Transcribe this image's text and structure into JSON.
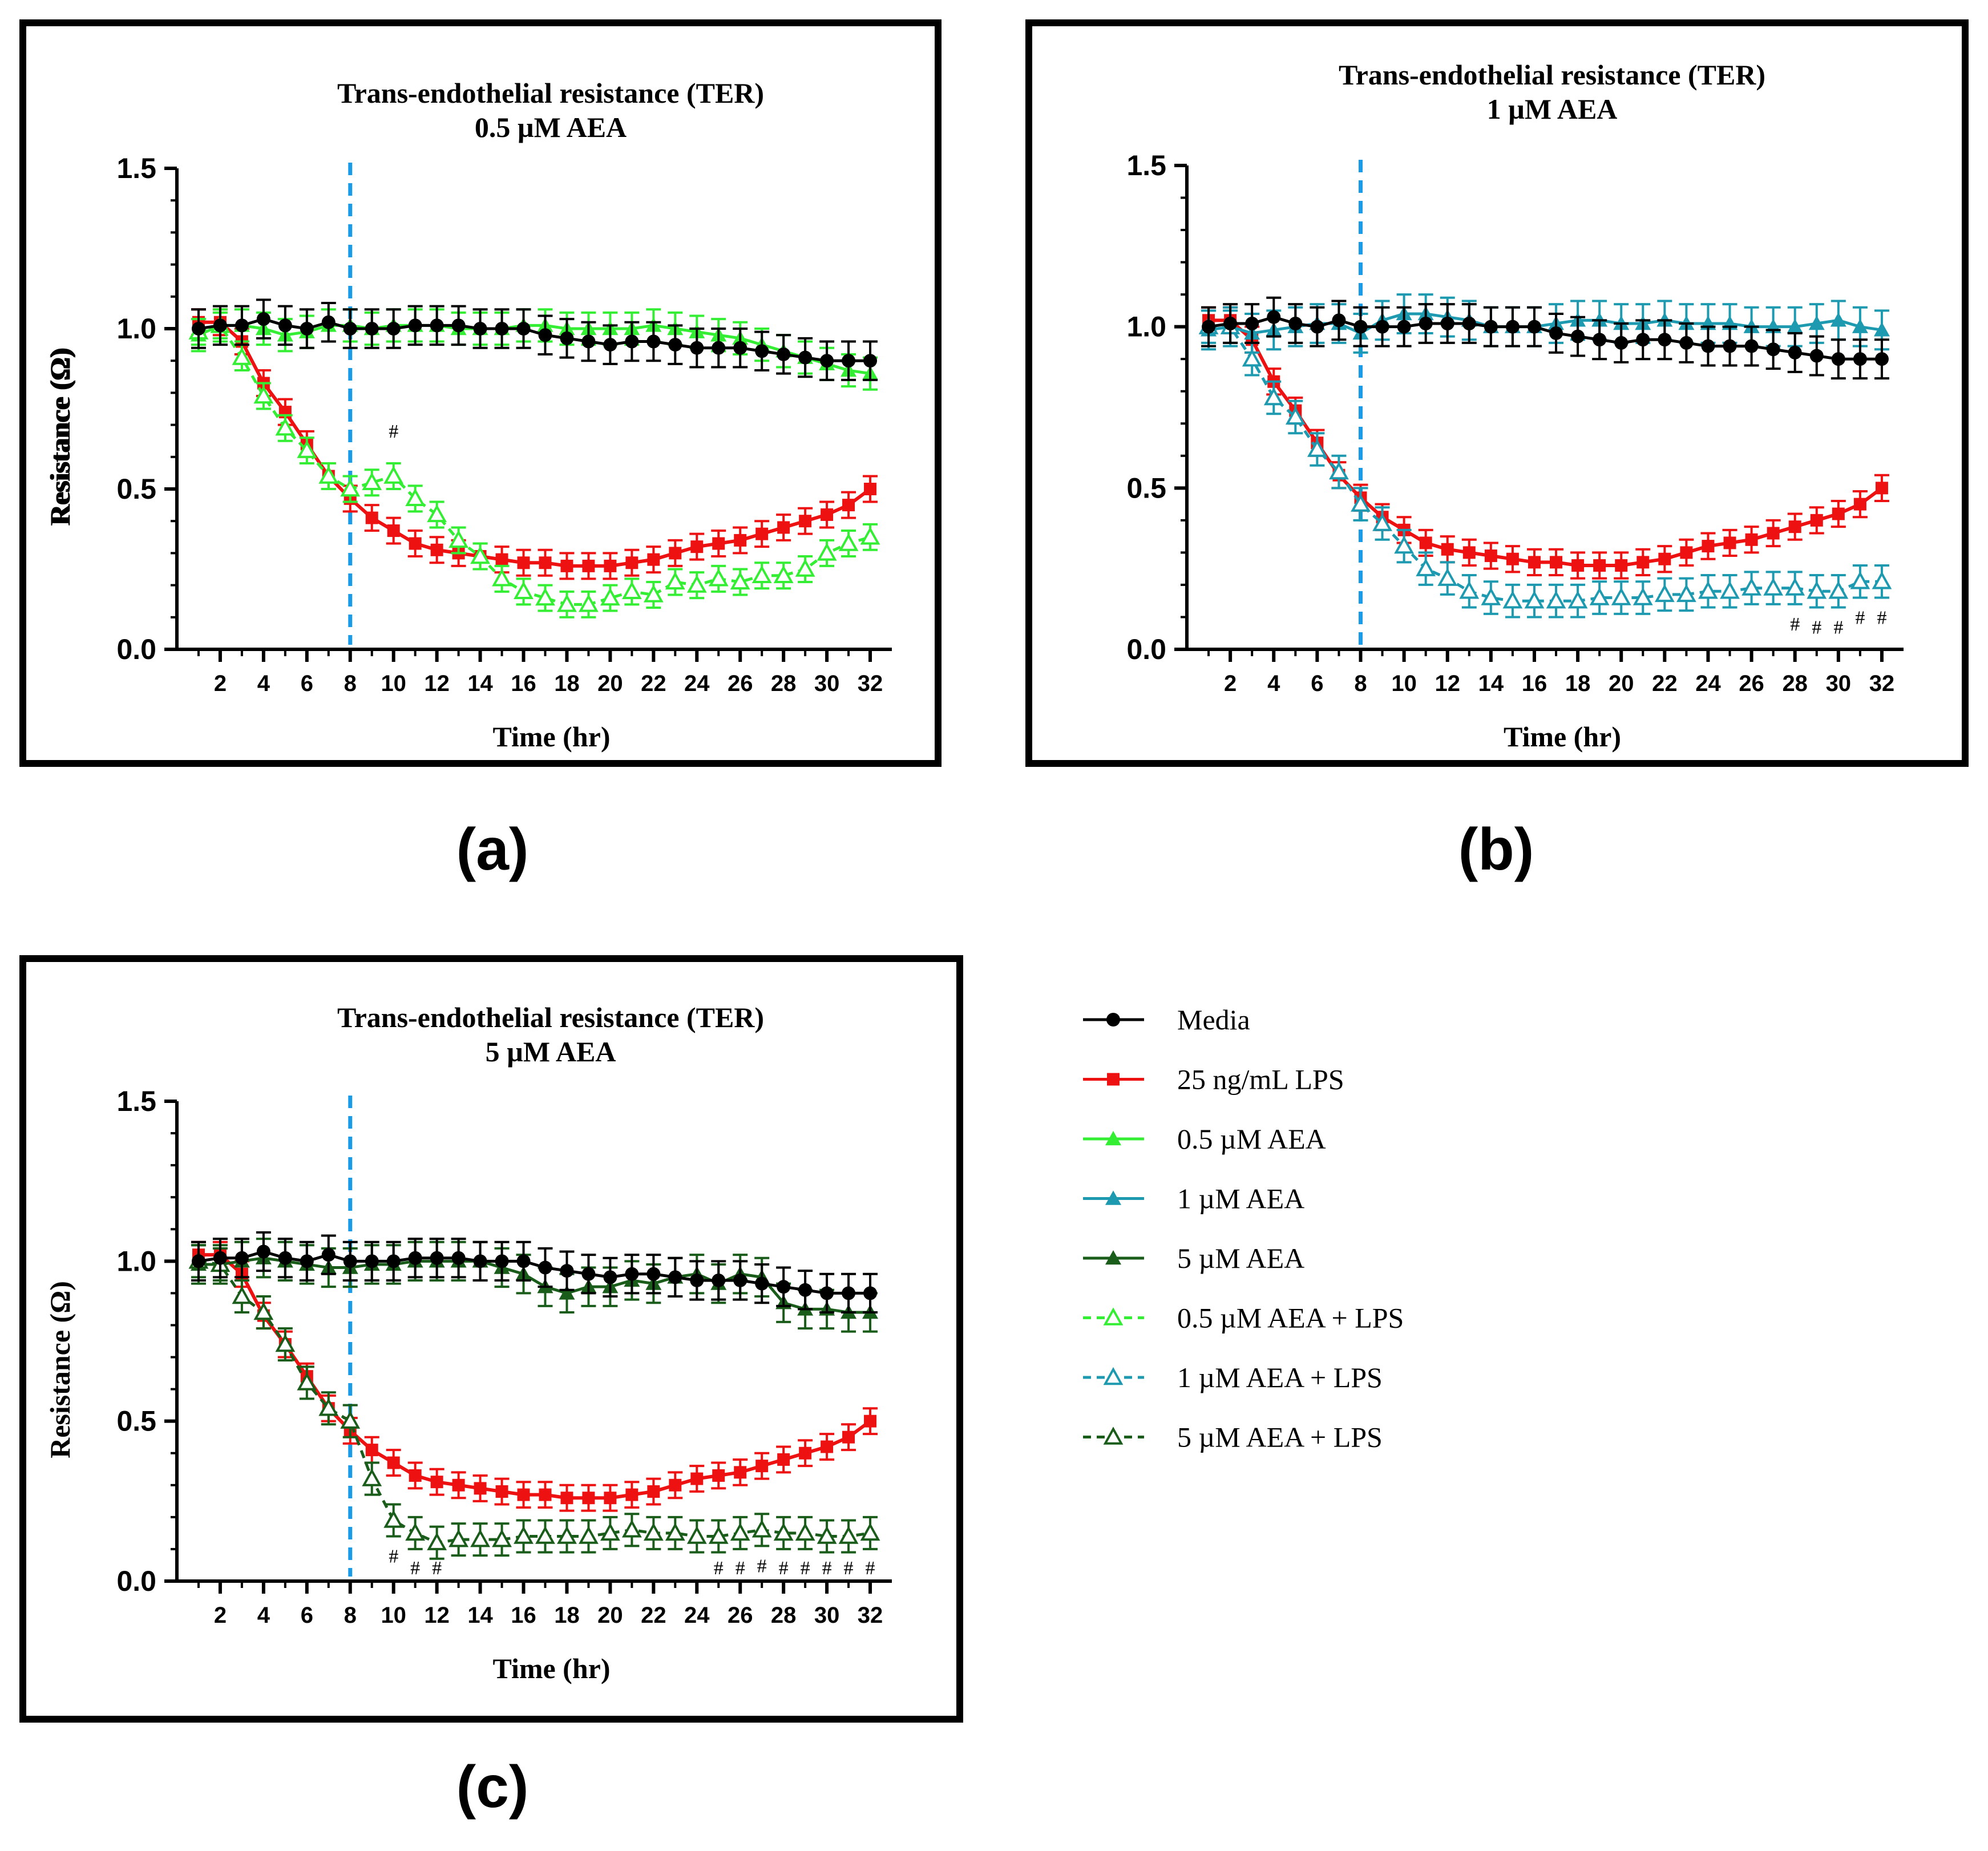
{
  "chart_data": [
    {
      "type": "line",
      "panel_label": "(a)",
      "title": [
        "Trans-endothelial resistance (TER)",
        "0.5 µM AEA"
      ],
      "xlabel": "Time (hr)",
      "ylabel": "Resistance (Ω)",
      "xlim": [
        0,
        33
      ],
      "ylim": [
        0,
        1.5
      ],
      "xticks": [
        2,
        4,
        6,
        8,
        10,
        12,
        14,
        16,
        18,
        20,
        22,
        24,
        26,
        28,
        30,
        32
      ],
      "yticks": [
        0.0,
        0.5,
        1.0,
        1.5
      ],
      "ytick_labels": [
        "0.0",
        "0.5",
        "1.0",
        "1.5"
      ],
      "treatment_time": 8,
      "x": [
        1,
        2,
        3,
        4,
        5,
        6,
        7,
        8,
        9,
        10,
        11,
        12,
        13,
        14,
        15,
        16,
        17,
        18,
        19,
        20,
        21,
        22,
        23,
        24,
        25,
        26,
        27,
        28,
        29,
        30,
        31,
        32
      ],
      "series": [
        {
          "key": "lps",
          "values": [
            1.02,
            1.02,
            0.96,
            0.83,
            0.74,
            0.64,
            0.54,
            0.47,
            0.41,
            0.37,
            0.33,
            0.31,
            0.3,
            0.29,
            0.28,
            0.27,
            0.27,
            0.26,
            0.26,
            0.26,
            0.27,
            0.28,
            0.3,
            0.32,
            0.33,
            0.34,
            0.36,
            0.38,
            0.4,
            0.42,
            0.45,
            0.5
          ],
          "err": 0.04
        },
        {
          "key": "aea",
          "values": [
            0.98,
            1.01,
            1.01,
            1.0,
            0.98,
            0.99,
            1.01,
            1.01,
            1.0,
            1.01,
            1.01,
            1.01,
            1.0,
            1.0,
            1.0,
            1.01,
            1.01,
            1.0,
            1.0,
            1.0,
            1.0,
            1.01,
            1.0,
            0.99,
            0.98,
            0.97,
            0.95,
            0.93,
            0.91,
            0.89,
            0.87,
            0.86
          ],
          "err": 0.05
        },
        {
          "key": "aea_lps",
          "values": [
            0.99,
            1.01,
            0.91,
            0.79,
            0.69,
            0.62,
            0.54,
            0.5,
            0.52,
            0.54,
            0.47,
            0.42,
            0.34,
            0.29,
            0.22,
            0.18,
            0.16,
            0.14,
            0.14,
            0.16,
            0.18,
            0.17,
            0.21,
            0.2,
            0.22,
            0.21,
            0.23,
            0.23,
            0.25,
            0.3,
            0.33,
            0.35
          ],
          "err": 0.04
        },
        {
          "key": "media",
          "values": [
            1.0,
            1.01,
            1.01,
            1.03,
            1.01,
            1.0,
            1.02,
            1.0,
            1.0,
            1.0,
            1.01,
            1.01,
            1.01,
            1.0,
            1.0,
            1.0,
            0.98,
            0.97,
            0.96,
            0.95,
            0.96,
            0.96,
            0.95,
            0.94,
            0.94,
            0.94,
            0.93,
            0.92,
            0.91,
            0.9,
            0.9,
            0.9
          ],
          "err": 0.06
        }
      ],
      "significance_marker": "#",
      "significance_x": [
        10
      ]
    },
    {
      "type": "line",
      "panel_label": "(b)",
      "title": [
        "Trans-endothelial resistance (TER)",
        "1 µM AEA"
      ],
      "xlabel": "Time (hr)",
      "ylabel": "Resistance (Ω)",
      "xlim": [
        0,
        33
      ],
      "ylim": [
        0,
        1.5
      ],
      "xticks": [
        2,
        4,
        6,
        8,
        10,
        12,
        14,
        16,
        18,
        20,
        22,
        24,
        26,
        28,
        30,
        32
      ],
      "yticks": [
        0.0,
        0.5,
        1.0,
        1.5
      ],
      "ytick_labels": [
        "0.0",
        "0.5",
        "1.0",
        "1.5"
      ],
      "treatment_time": 8,
      "x": [
        1,
        2,
        3,
        4,
        5,
        6,
        7,
        8,
        9,
        10,
        11,
        12,
        13,
        14,
        15,
        16,
        17,
        18,
        19,
        20,
        21,
        22,
        23,
        24,
        25,
        26,
        27,
        28,
        29,
        30,
        31,
        32
      ],
      "series": [
        {
          "key": "lps",
          "values": [
            1.02,
            1.02,
            0.96,
            0.83,
            0.74,
            0.64,
            0.54,
            0.47,
            0.41,
            0.37,
            0.33,
            0.31,
            0.3,
            0.29,
            0.28,
            0.27,
            0.27,
            0.26,
            0.26,
            0.26,
            0.27,
            0.28,
            0.3,
            0.32,
            0.33,
            0.34,
            0.36,
            0.38,
            0.4,
            0.42,
            0.45,
            0.5
          ],
          "err": 0.04
        },
        {
          "key": "aea",
          "values": [
            0.99,
            1.0,
            0.98,
            0.99,
            1.0,
            1.01,
            1.01,
            0.98,
            1.02,
            1.04,
            1.04,
            1.03,
            1.02,
            1.0,
            1.0,
            1.0,
            1.01,
            1.02,
            1.02,
            1.01,
            1.01,
            1.02,
            1.01,
            1.01,
            1.01,
            1.0,
            1.0,
            1.0,
            1.01,
            1.02,
            1.0,
            0.99
          ],
          "err": 0.06
        },
        {
          "key": "aea_lps",
          "values": [
            1.0,
            1.0,
            0.9,
            0.78,
            0.72,
            0.62,
            0.55,
            0.45,
            0.39,
            0.32,
            0.25,
            0.22,
            0.18,
            0.16,
            0.15,
            0.15,
            0.15,
            0.15,
            0.16,
            0.16,
            0.16,
            0.17,
            0.17,
            0.18,
            0.18,
            0.19,
            0.19,
            0.19,
            0.18,
            0.18,
            0.21,
            0.21
          ],
          "err": 0.05
        },
        {
          "key": "media",
          "values": [
            1.0,
            1.01,
            1.01,
            1.03,
            1.01,
            1.0,
            1.02,
            1.0,
            1.0,
            1.0,
            1.01,
            1.01,
            1.01,
            1.0,
            1.0,
            1.0,
            0.98,
            0.97,
            0.96,
            0.95,
            0.96,
            0.96,
            0.95,
            0.94,
            0.94,
            0.94,
            0.93,
            0.92,
            0.91,
            0.9,
            0.9,
            0.9
          ],
          "err": 0.06
        }
      ],
      "significance_marker": "#",
      "significance_x": [
        28,
        29,
        30,
        31,
        32
      ]
    },
    {
      "type": "line",
      "panel_label": "(c)",
      "title": [
        "Trans-endothelial resistance (TER)",
        "5 µM AEA"
      ],
      "xlabel": "Time (hr)",
      "ylabel": "Resistance (Ω)",
      "xlim": [
        0,
        33
      ],
      "ylim": [
        0,
        1.5
      ],
      "xticks": [
        2,
        4,
        6,
        8,
        10,
        12,
        14,
        16,
        18,
        20,
        22,
        24,
        26,
        28,
        30,
        32
      ],
      "yticks": [
        0.0,
        0.5,
        1.0,
        1.5
      ],
      "ytick_labels": [
        "0.0",
        "0.5",
        "1.0",
        "1.5"
      ],
      "treatment_time": 8,
      "x": [
        1,
        2,
        3,
        4,
        5,
        6,
        7,
        8,
        9,
        10,
        11,
        12,
        13,
        14,
        15,
        16,
        17,
        18,
        19,
        20,
        21,
        22,
        23,
        24,
        25,
        26,
        27,
        28,
        29,
        30,
        31,
        32
      ],
      "series": [
        {
          "key": "lps",
          "values": [
            1.02,
            1.02,
            0.96,
            0.83,
            0.74,
            0.64,
            0.54,
            0.47,
            0.41,
            0.37,
            0.33,
            0.31,
            0.3,
            0.29,
            0.28,
            0.27,
            0.27,
            0.26,
            0.26,
            0.26,
            0.27,
            0.28,
            0.3,
            0.32,
            0.33,
            0.34,
            0.36,
            0.38,
            0.4,
            0.42,
            0.45,
            0.5
          ],
          "err": 0.04
        },
        {
          "key": "aea",
          "values": [
            0.99,
            0.99,
            1.0,
            1.01,
            1.0,
            0.99,
            0.98,
            0.98,
            0.99,
            0.99,
            1.0,
            1.0,
            1.0,
            1.0,
            0.98,
            0.96,
            0.92,
            0.9,
            0.92,
            0.92,
            0.94,
            0.93,
            0.95,
            0.96,
            0.93,
            0.96,
            0.95,
            0.87,
            0.85,
            0.85,
            0.84,
            0.84
          ],
          "err": 0.06
        },
        {
          "key": "aea_lps",
          "values": [
            1.0,
            0.99,
            0.89,
            0.84,
            0.74,
            0.62,
            0.54,
            0.5,
            0.32,
            0.19,
            0.15,
            0.12,
            0.13,
            0.13,
            0.13,
            0.14,
            0.14,
            0.14,
            0.14,
            0.15,
            0.16,
            0.15,
            0.15,
            0.14,
            0.14,
            0.15,
            0.16,
            0.15,
            0.15,
            0.14,
            0.14,
            0.15
          ],
          "err": 0.05
        },
        {
          "key": "media",
          "values": [
            1.0,
            1.01,
            1.01,
            1.03,
            1.01,
            1.0,
            1.02,
            1.0,
            1.0,
            1.0,
            1.01,
            1.01,
            1.01,
            1.0,
            1.0,
            1.0,
            0.98,
            0.97,
            0.96,
            0.95,
            0.96,
            0.96,
            0.95,
            0.94,
            0.94,
            0.94,
            0.93,
            0.92,
            0.91,
            0.9,
            0.9,
            0.9
          ],
          "err": 0.06
        }
      ],
      "significance_marker": "#",
      "significance_x": [
        10,
        11,
        12,
        25,
        26,
        27,
        28,
        29,
        30,
        31,
        32
      ]
    }
  ],
  "series_styles": {
    "media": {
      "color": "#000000",
      "marker": "circle",
      "dashed": false
    },
    "lps": {
      "color": "#ee1111",
      "marker": "square",
      "dashed": false
    },
    "aea_a": {
      "color": "#33ee33",
      "marker": "triangle",
      "dashed": false
    },
    "aea_lps_a": {
      "color": "#33ee33",
      "marker": "triangle-open",
      "dashed": true
    },
    "aea_b": {
      "color": "#1e9ab0",
      "marker": "triangle",
      "dashed": false
    },
    "aea_lps_b": {
      "color": "#1e9ab0",
      "marker": "triangle-open",
      "dashed": true
    },
    "aea_c": {
      "color": "#1a5c1a",
      "marker": "triangle",
      "dashed": false
    },
    "aea_lps_c": {
      "color": "#1a5c1a",
      "marker": "triangle-open",
      "dashed": true
    },
    "treatment_line": "#1a9be8"
  },
  "legend": [
    {
      "label": "Media",
      "style": "media"
    },
    {
      "label": "25 ng/mL LPS",
      "style": "lps"
    },
    {
      "label": "0.5 µM AEA",
      "style": "aea_a"
    },
    {
      "label": "1 µM AEA",
      "style": "aea_b"
    },
    {
      "label": "5 µM AEA",
      "style": "aea_c"
    },
    {
      "label": "0.5 µM AEA + LPS",
      "style": "aea_lps_a"
    },
    {
      "label": "1 µM AEA + LPS",
      "style": "aea_lps_b"
    },
    {
      "label": "5 µM AEA + LPS",
      "style": "aea_lps_c"
    }
  ]
}
